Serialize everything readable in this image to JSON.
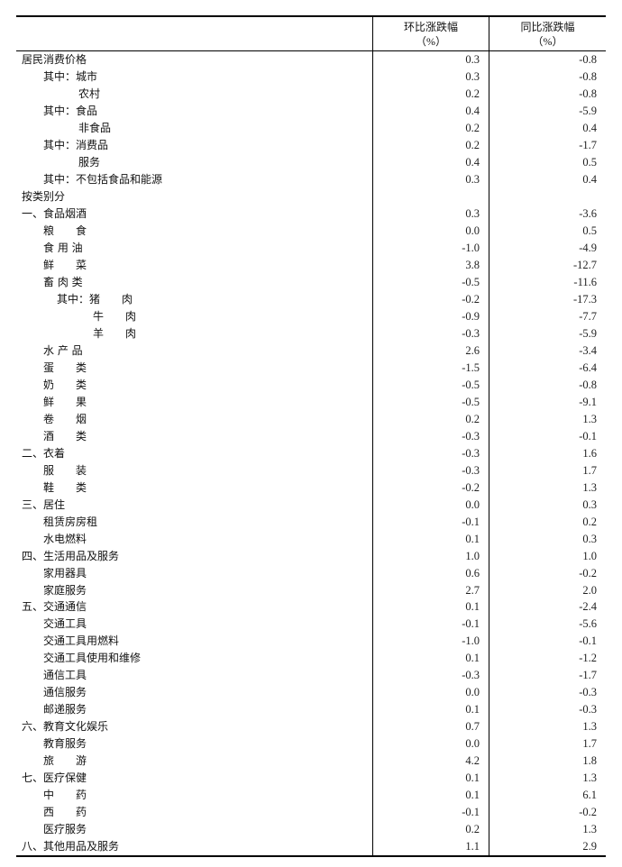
{
  "header": {
    "col_label": "",
    "mom": "环比涨跌幅",
    "yoy": "同比涨跌幅",
    "unit": "（%）"
  },
  "rows": [
    {
      "indent": 0,
      "label": "居民消费价格",
      "mom": "0.3",
      "yoy": "-0.8"
    },
    {
      "indent": 1,
      "label": "其中：城市",
      "mom": "0.3",
      "yoy": "-0.8"
    },
    {
      "indent": 2,
      "label": "农村",
      "mom": "0.2",
      "yoy": "-0.8"
    },
    {
      "indent": 1,
      "label": "其中：食品",
      "mom": "0.4",
      "yoy": "-5.9"
    },
    {
      "indent": 2,
      "label": "非食品",
      "mom": "0.2",
      "yoy": "0.4"
    },
    {
      "indent": 1,
      "label": "其中：消费品",
      "mom": "0.2",
      "yoy": "-1.7"
    },
    {
      "indent": 2,
      "label": "服务",
      "mom": "0.4",
      "yoy": "0.5"
    },
    {
      "indent": 1,
      "label": "其中：不包括食品和能源",
      "mom": "0.3",
      "yoy": "0.4"
    },
    {
      "indent": 0,
      "label": "按类别分",
      "mom": "",
      "yoy": ""
    },
    {
      "indent": 0,
      "label": "一、食品烟酒",
      "mom": "0.3",
      "yoy": "-3.6"
    },
    {
      "indent": 1,
      "label": "粮　　食",
      "mom": "0.0",
      "yoy": "0.5"
    },
    {
      "indent": 1,
      "label": "食 用 油",
      "mom": "-1.0",
      "yoy": "-4.9"
    },
    {
      "indent": 1,
      "label": "鲜　　菜",
      "mom": "3.8",
      "yoy": "-12.7"
    },
    {
      "indent": 1,
      "label": "畜 肉 类",
      "mom": "-0.5",
      "yoy": "-11.6"
    },
    {
      "indent": 3,
      "label": "其中：猪　　肉",
      "mom": "-0.2",
      "yoy": "-17.3"
    },
    {
      "indent": 4,
      "label": "牛　　肉",
      "mom": "-0.9",
      "yoy": "-7.7"
    },
    {
      "indent": 4,
      "label": "羊　　肉",
      "mom": "-0.3",
      "yoy": "-5.9"
    },
    {
      "indent": 1,
      "label": "水 产 品",
      "mom": "2.6",
      "yoy": "-3.4"
    },
    {
      "indent": 1,
      "label": "蛋　　类",
      "mom": "-1.5",
      "yoy": "-6.4"
    },
    {
      "indent": 1,
      "label": "奶　　类",
      "mom": "-0.5",
      "yoy": "-0.8"
    },
    {
      "indent": 1,
      "label": "鲜　　果",
      "mom": "-0.5",
      "yoy": "-9.1"
    },
    {
      "indent": 1,
      "label": "卷　　烟",
      "mom": "0.2",
      "yoy": "1.3"
    },
    {
      "indent": 1,
      "label": "酒　　类",
      "mom": "-0.3",
      "yoy": "-0.1"
    },
    {
      "indent": 0,
      "label": "二、衣着",
      "mom": "-0.3",
      "yoy": "1.6"
    },
    {
      "indent": 1,
      "label": "服　　装",
      "mom": "-0.3",
      "yoy": "1.7"
    },
    {
      "indent": 1,
      "label": "鞋　　类",
      "mom": "-0.2",
      "yoy": "1.3"
    },
    {
      "indent": 0,
      "label": "三、居住",
      "mom": "0.0",
      "yoy": "0.3"
    },
    {
      "indent": 1,
      "label": "租赁房房租",
      "mom": "-0.1",
      "yoy": "0.2"
    },
    {
      "indent": 1,
      "label": "水电燃料",
      "mom": "0.1",
      "yoy": "0.3"
    },
    {
      "indent": 0,
      "label": "四、生活用品及服务",
      "mom": "1.0",
      "yoy": "1.0"
    },
    {
      "indent": 1,
      "label": "家用器具",
      "mom": "0.6",
      "yoy": "-0.2"
    },
    {
      "indent": 1,
      "label": "家庭服务",
      "mom": "2.7",
      "yoy": "2.0"
    },
    {
      "indent": 0,
      "label": "五、交通通信",
      "mom": "0.1",
      "yoy": "-2.4"
    },
    {
      "indent": 1,
      "label": "交通工具",
      "mom": "-0.1",
      "yoy": "-5.6"
    },
    {
      "indent": 1,
      "label": "交通工具用燃料",
      "mom": "-1.0",
      "yoy": "-0.1"
    },
    {
      "indent": 1,
      "label": "交通工具使用和维修",
      "mom": "0.1",
      "yoy": "-1.2"
    },
    {
      "indent": 1,
      "label": "通信工具",
      "mom": "-0.3",
      "yoy": "-1.7"
    },
    {
      "indent": 1,
      "label": "通信服务",
      "mom": "0.0",
      "yoy": "-0.3"
    },
    {
      "indent": 1,
      "label": "邮递服务",
      "mom": "0.1",
      "yoy": "-0.3"
    },
    {
      "indent": 0,
      "label": "六、教育文化娱乐",
      "mom": "0.7",
      "yoy": "1.3"
    },
    {
      "indent": 1,
      "label": "教育服务",
      "mom": "0.0",
      "yoy": "1.7"
    },
    {
      "indent": 1,
      "label": "旅　　游",
      "mom": "4.2",
      "yoy": "1.8"
    },
    {
      "indent": 0,
      "label": "七、医疗保健",
      "mom": "0.1",
      "yoy": "1.3"
    },
    {
      "indent": 1,
      "label": "中　　药",
      "mom": "0.1",
      "yoy": "6.1"
    },
    {
      "indent": 1,
      "label": "西　　药",
      "mom": "-0.1",
      "yoy": "-0.2"
    },
    {
      "indent": 1,
      "label": "医疗服务",
      "mom": "0.2",
      "yoy": "1.3"
    },
    {
      "indent": 0,
      "label": "八、其他用品及服务",
      "mom": "1.1",
      "yoy": "2.9"
    }
  ]
}
